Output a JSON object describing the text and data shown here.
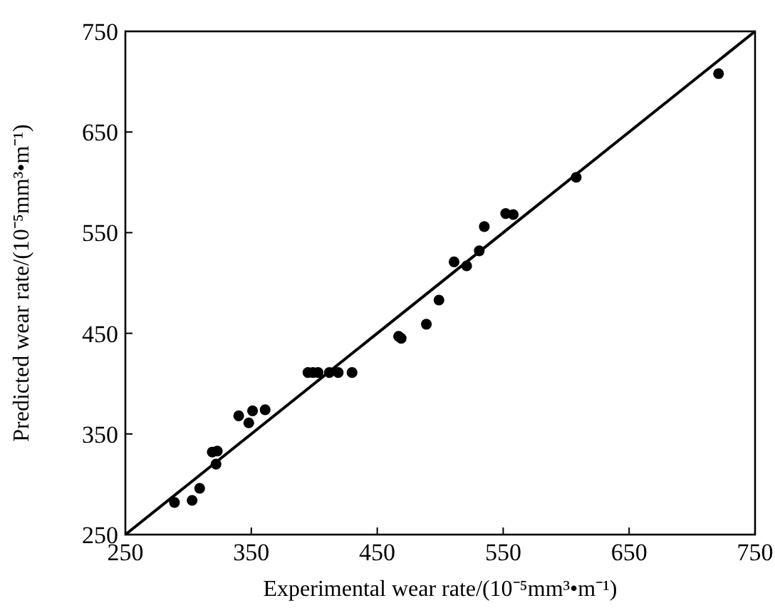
{
  "chart_data": {
    "type": "scatter",
    "xlabel": "Experimental wear rate/(10⁻⁵mm³•m⁻¹)",
    "ylabel": "Predicted wear rate/(10⁻⁵mm³•m⁻¹)",
    "xlim": [
      250,
      750
    ],
    "ylim": [
      250,
      750
    ],
    "xticks": [
      250,
      350,
      450,
      550,
      650,
      750
    ],
    "yticks": [
      250,
      350,
      450,
      550,
      650,
      750
    ],
    "grid": false,
    "series": [
      {
        "color": "#000000",
        "marker": "circle",
        "x": [
          289,
          303,
          309,
          319,
          323,
          322,
          340,
          348,
          351,
          361,
          395,
          399,
          403,
          412,
          419,
          430,
          467,
          469,
          489,
          499,
          511,
          521,
          531,
          535,
          552,
          558,
          608,
          721
        ],
        "values": [
          282,
          284,
          296,
          332,
          333,
          320,
          368,
          361,
          373,
          374,
          411,
          411,
          411,
          411,
          411,
          411,
          447,
          445,
          459,
          483,
          521,
          517,
          532,
          556,
          569,
          568,
          605,
          708
        ]
      },
      {
        "type": "line",
        "color": "#000000",
        "line_style": "solid",
        "x": [
          250,
          750
        ],
        "values": [
          250,
          750
        ]
      }
    ]
  }
}
